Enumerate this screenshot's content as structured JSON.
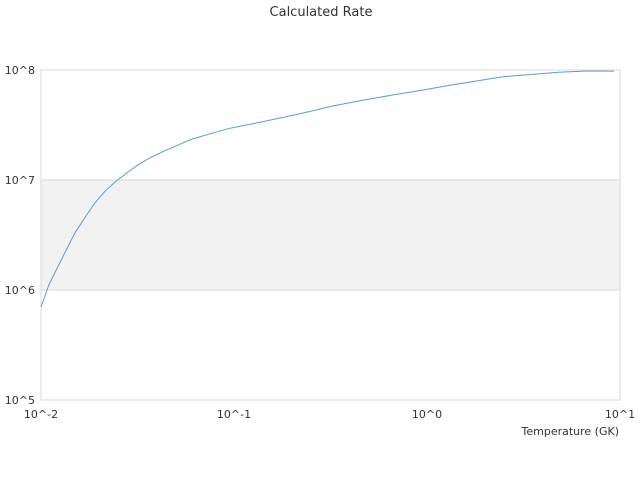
{
  "chart_data": {
    "type": "line",
    "title": "Calculated Rate",
    "xlabel": "Temperature (GK)",
    "ylabel": "",
    "xscale": "log",
    "yscale": "log",
    "xlim": [
      0.01,
      10
    ],
    "ylim": [
      100000,
      100000000
    ],
    "x_ticks": [
      0.01,
      0.1,
      1,
      10
    ],
    "x_tick_labels": [
      "10^-2",
      "10^-1",
      "10^0",
      "10^1"
    ],
    "y_ticks": [
      100000,
      1000000,
      10000000,
      100000000
    ],
    "y_tick_labels": [
      "10^5",
      "10^6",
      "10^7",
      "10^8"
    ],
    "grid": "horizontal",
    "alternating_band_color": "#f2f2f2",
    "line_color": "#5b9bd5",
    "series": [
      {
        "x": [
          0.01,
          0.011,
          0.0122,
          0.0135,
          0.015,
          0.0168,
          0.019,
          0.0215,
          0.0245,
          0.028,
          0.032,
          0.037,
          0.043,
          0.05,
          0.06,
          0.075,
          0.095,
          0.125,
          0.17,
          0.23,
          0.32,
          0.45,
          0.65,
          0.9,
          1.3,
          1.8,
          2.5,
          3.5,
          4.8,
          6.5,
          9.3
        ],
        "y": [
          700000,
          1120000,
          1620000,
          2310000,
          3310000,
          4500000,
          6170000,
          7940000,
          9770000,
          11700000,
          13800000,
          16000000,
          18200000,
          20400000,
          23400000,
          26300000,
          29500000,
          32400000,
          36300000,
          40700000,
          46800000,
          52500000,
          58900000,
          64600000,
          72400000,
          79400000,
          87100000,
          91200000,
          95500000,
          97700000,
          97700000
        ]
      }
    ]
  }
}
